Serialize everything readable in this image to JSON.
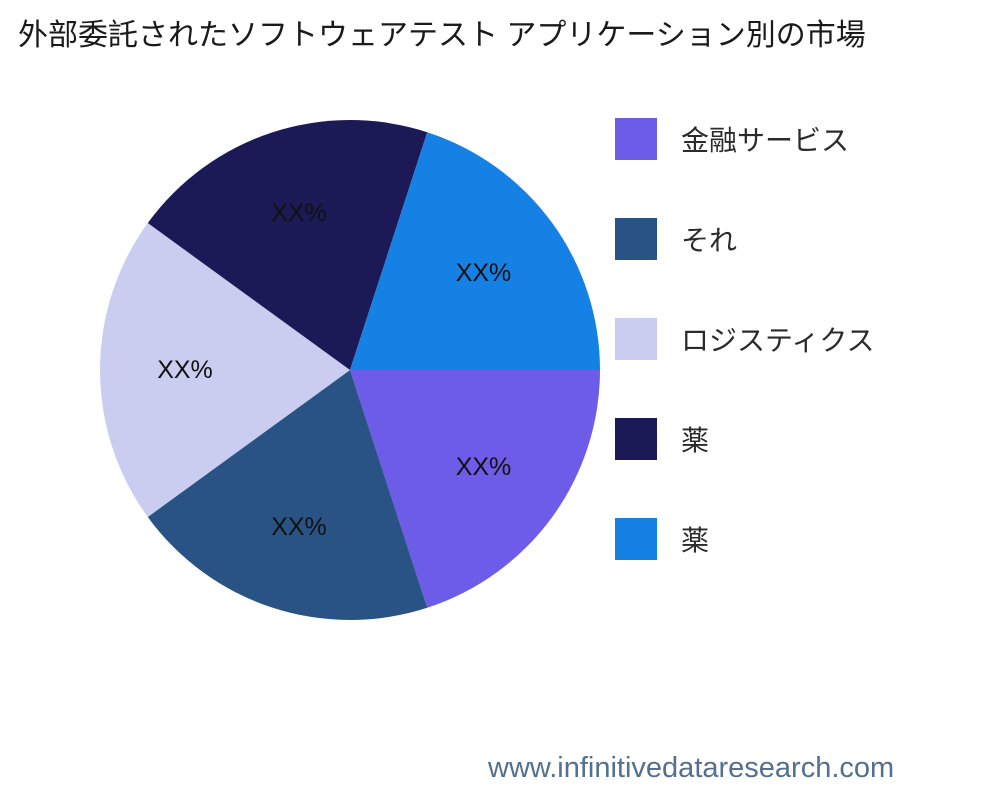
{
  "title": "外部委託されたソフトウェアテスト アプリケーション別の市場",
  "footer": {
    "url": "www.infinitivedataresearch.com"
  },
  "chart_data": {
    "type": "pie",
    "title": "外部委託されたソフトウェアテスト アプリケーション別の市場",
    "start_angle_deg": 0,
    "direction": "clockwise",
    "legend_position": "right",
    "label_radius_fraction": 0.66,
    "slices": [
      {
        "label": "金融サービス",
        "value": 20,
        "display": "XX%",
        "color": "#6C5CE7"
      },
      {
        "label": "それ",
        "value": 20,
        "display": "XX%",
        "color": "#2A5385"
      },
      {
        "label": "ロジスティクス",
        "value": 20,
        "display": "XX%",
        "color": "#CBCDF0"
      },
      {
        "label": "薬",
        "value": 20,
        "display": "XX%",
        "color": "#1C1A56"
      },
      {
        "label": "薬",
        "value": 20,
        "display": "XX%",
        "color": "#1581E4"
      }
    ]
  }
}
